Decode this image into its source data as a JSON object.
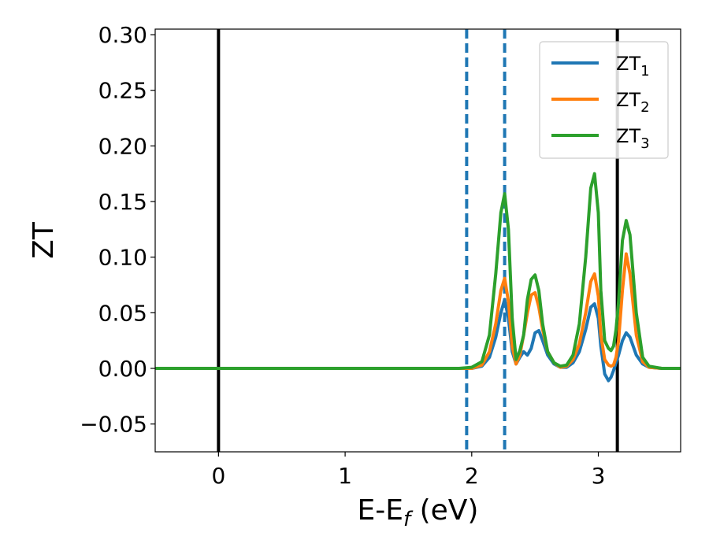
{
  "chart_data": {
    "type": "line",
    "xlabel": "E-E",
    "xlabel_sub": "f",
    "xlabel_unit": " (eV)",
    "ylabel": "ZT",
    "xlim": [
      -0.5,
      3.65
    ],
    "ylim": [
      -0.075,
      0.305
    ],
    "xticks": [
      0,
      1,
      2,
      3
    ],
    "xtick_labels": [
      "0",
      "1",
      "2",
      "3"
    ],
    "yticks": [
      -0.05,
      0.0,
      0.05,
      0.1,
      0.15,
      0.2,
      0.25,
      0.3
    ],
    "ytick_labels": [
      "−0.05",
      "0.00",
      "0.05",
      "0.10",
      "0.15",
      "0.20",
      "0.25",
      "0.30"
    ],
    "grid": false,
    "legend_position": "top-right",
    "vertical_lines": [
      {
        "x": 0.0,
        "style": "solid",
        "color": "#000000"
      },
      {
        "x": 1.96,
        "style": "dashed",
        "color": "#1f77b4"
      },
      {
        "x": 2.26,
        "style": "dashed",
        "color": "#1f77b4"
      },
      {
        "x": 3.15,
        "style": "solid",
        "color": "#000000"
      }
    ],
    "series": [
      {
        "name": "ZT",
        "name_sub": "1",
        "color": "#1f77b4",
        "x": [
          -0.5,
          1.9,
          2.0,
          2.08,
          2.14,
          2.19,
          2.23,
          2.26,
          2.29,
          2.32,
          2.35,
          2.38,
          2.41,
          2.44,
          2.47,
          2.5,
          2.53,
          2.56,
          2.6,
          2.65,
          2.7,
          2.75,
          2.8,
          2.85,
          2.9,
          2.94,
          2.97,
          3.0,
          3.02,
          3.05,
          3.08,
          3.1,
          3.12,
          3.14,
          3.16,
          3.19,
          3.22,
          3.25,
          3.3,
          3.35,
          3.4,
          3.5,
          3.65
        ],
        "y": [
          0.0,
          0.0,
          0.0,
          0.002,
          0.01,
          0.028,
          0.05,
          0.062,
          0.045,
          0.015,
          0.004,
          0.01,
          0.015,
          0.012,
          0.018,
          0.032,
          0.034,
          0.025,
          0.012,
          0.004,
          0.001,
          0.001,
          0.005,
          0.015,
          0.035,
          0.055,
          0.058,
          0.045,
          0.02,
          -0.005,
          -0.011,
          -0.008,
          -0.002,
          0.005,
          0.012,
          0.025,
          0.032,
          0.028,
          0.012,
          0.004,
          0.001,
          0.0,
          0.0
        ]
      },
      {
        "name": "ZT",
        "name_sub": "2",
        "color": "#ff7f0e",
        "x": [
          -0.5,
          1.9,
          2.0,
          2.08,
          2.14,
          2.19,
          2.23,
          2.26,
          2.29,
          2.32,
          2.35,
          2.38,
          2.41,
          2.44,
          2.47,
          2.5,
          2.53,
          2.56,
          2.6,
          2.65,
          2.7,
          2.75,
          2.8,
          2.85,
          2.9,
          2.94,
          2.97,
          3.0,
          3.02,
          3.05,
          3.08,
          3.1,
          3.12,
          3.14,
          3.16,
          3.19,
          3.22,
          3.25,
          3.3,
          3.35,
          3.4,
          3.5,
          3.65
        ],
        "y": [
          0.0,
          0.0,
          0.0,
          0.003,
          0.015,
          0.04,
          0.07,
          0.081,
          0.06,
          0.02,
          0.004,
          0.012,
          0.03,
          0.05,
          0.066,
          0.068,
          0.055,
          0.035,
          0.015,
          0.005,
          0.001,
          0.002,
          0.008,
          0.022,
          0.05,
          0.078,
          0.085,
          0.065,
          0.03,
          0.008,
          0.003,
          0.002,
          0.003,
          0.01,
          0.025,
          0.07,
          0.103,
          0.085,
          0.03,
          0.006,
          0.001,
          0.0,
          0.0
        ]
      },
      {
        "name": "ZT",
        "name_sub": "3",
        "color": "#2ca02c",
        "x": [
          -0.5,
          1.9,
          2.0,
          2.08,
          2.14,
          2.19,
          2.23,
          2.26,
          2.29,
          2.32,
          2.35,
          2.38,
          2.41,
          2.44,
          2.47,
          2.5,
          2.53,
          2.56,
          2.6,
          2.65,
          2.7,
          2.75,
          2.8,
          2.85,
          2.9,
          2.94,
          2.97,
          3.0,
          3.02,
          3.05,
          3.08,
          3.1,
          3.12,
          3.14,
          3.16,
          3.19,
          3.22,
          3.25,
          3.3,
          3.35,
          3.4,
          3.5,
          3.65
        ],
        "y": [
          0.0,
          0.0,
          0.001,
          0.006,
          0.03,
          0.085,
          0.14,
          0.157,
          0.125,
          0.045,
          0.008,
          0.016,
          0.03,
          0.062,
          0.08,
          0.084,
          0.07,
          0.04,
          0.015,
          0.005,
          0.002,
          0.003,
          0.012,
          0.04,
          0.1,
          0.162,
          0.175,
          0.14,
          0.07,
          0.025,
          0.018,
          0.016,
          0.02,
          0.035,
          0.06,
          0.115,
          0.133,
          0.12,
          0.05,
          0.01,
          0.002,
          0.0,
          0.0
        ]
      }
    ]
  }
}
